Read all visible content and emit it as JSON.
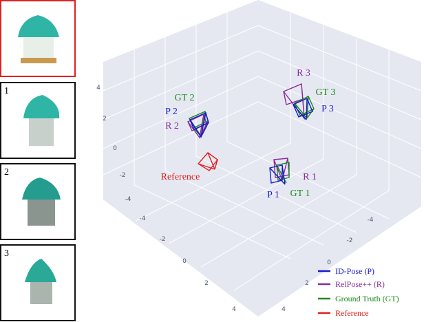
{
  "views": [
    {
      "label": "1"
    },
    {
      "label": "2"
    },
    {
      "label": "3"
    }
  ],
  "plot": {
    "axis_ticks": {
      "vertical": [
        "4",
        "2",
        "0",
        "-2",
        "-4"
      ],
      "left_floor": [
        "-4",
        "-2",
        "0",
        "2",
        "4"
      ],
      "right_floor": [
        "-4",
        "-2",
        "0",
        "2",
        "4"
      ]
    },
    "annotations": [
      {
        "text": "GT 2",
        "color": "#1a8a1a"
      },
      {
        "text": "P 2",
        "color": "#1a1acc"
      },
      {
        "text": "R 2",
        "color": "#8a2a9a"
      },
      {
        "text": "Reference",
        "color": "#e02020"
      },
      {
        "text": "R 3",
        "color": "#8a2a9a"
      },
      {
        "text": "GT 3",
        "color": "#1a8a1a"
      },
      {
        "text": "P 3",
        "color": "#1a1acc"
      },
      {
        "text": "R 1",
        "color": "#8a2a9a"
      },
      {
        "text": "P 1",
        "color": "#1a1acc"
      },
      {
        "text": "GT 1",
        "color": "#1a8a1a"
      }
    ],
    "legend": [
      {
        "text": "ID-Pose (P)",
        "color": "#1a1acc"
      },
      {
        "text": "RelPose++ (R)",
        "color": "#8a2a9a"
      },
      {
        "text": "Ground Truth (GT)",
        "color": "#1a8a1a"
      },
      {
        "text": "Reference",
        "color": "#e02020"
      }
    ]
  }
}
